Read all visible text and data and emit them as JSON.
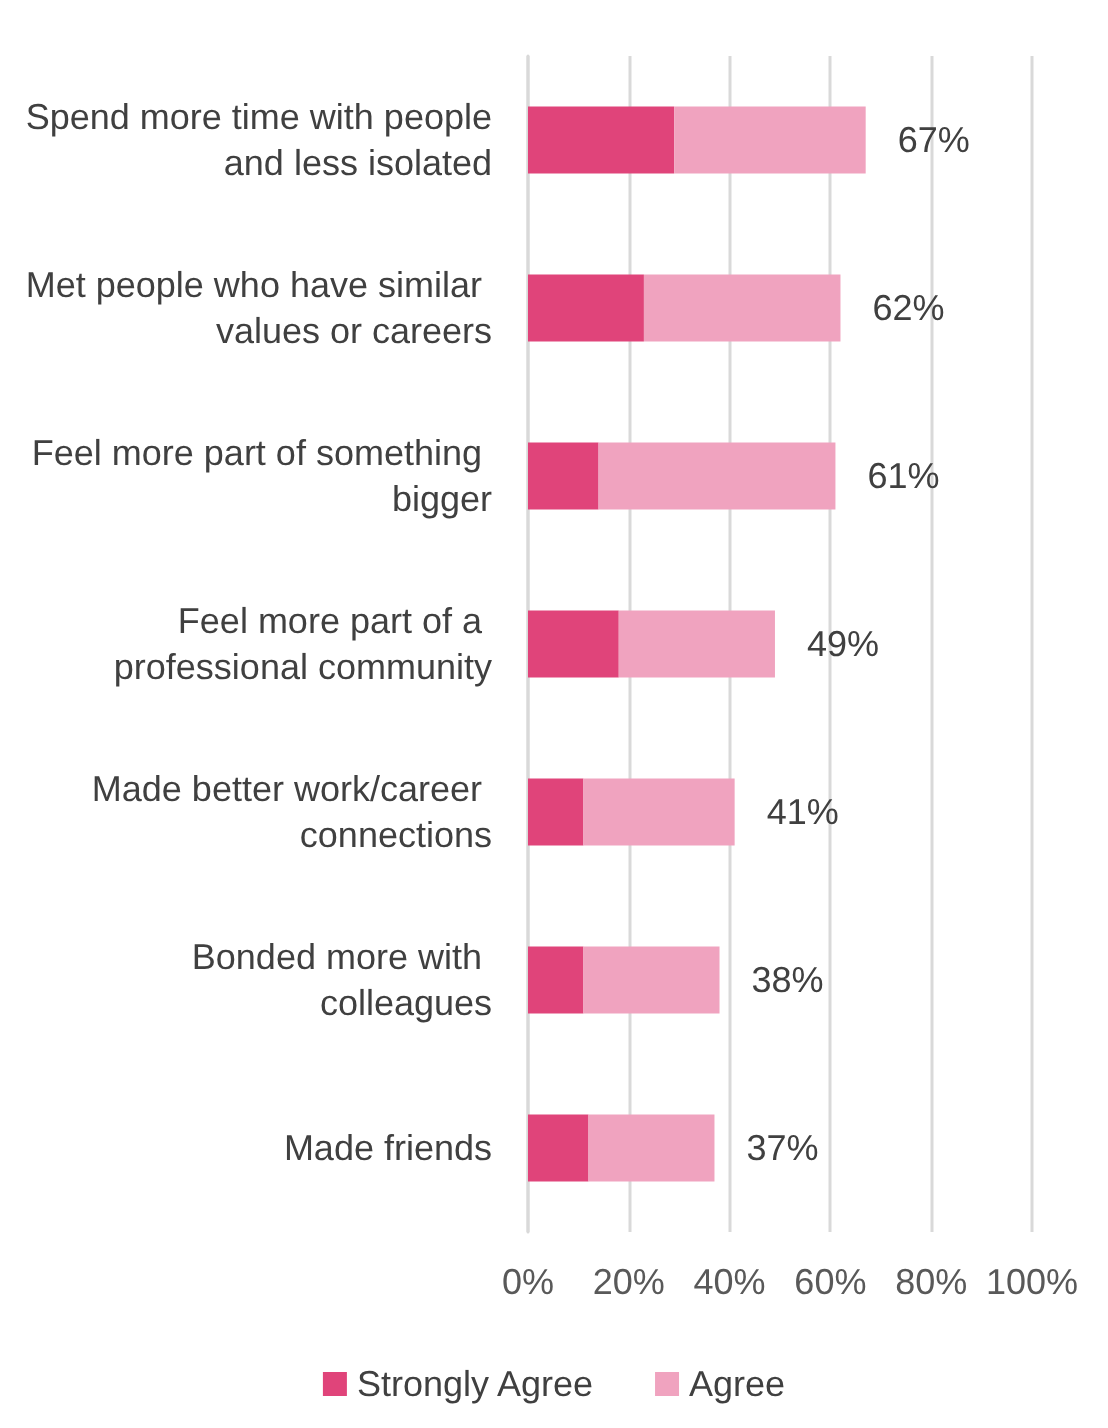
{
  "chart_data": {
    "type": "bar",
    "orientation": "horizontal",
    "stacked": true,
    "categories": [
      "Spend more time with people and less isolated",
      "Met people who have similar values or careers",
      "Feel more part of something bigger",
      "Feel more part of a professional community",
      "Made better work/career connections",
      "Bonded more with colleagues",
      "Made friends"
    ],
    "series": [
      {
        "name": "Strongly Agree",
        "color": "#e0447a",
        "values": [
          29,
          23,
          14,
          18,
          11,
          11,
          12
        ]
      },
      {
        "name": "Agree",
        "color": "#f0a3bf",
        "values": [
          38,
          39,
          47,
          31,
          30,
          27,
          25
        ]
      }
    ],
    "totals": [
      "67%",
      "62%",
      "61%",
      "49%",
      "41%",
      "38%",
      "37%"
    ],
    "xlim": [
      0,
      100
    ],
    "xticks": [
      {
        "value": 0,
        "label": "0%"
      },
      {
        "value": 20,
        "label": "20%"
      },
      {
        "value": 40,
        "label": "40%"
      },
      {
        "value": 60,
        "label": "60%"
      },
      {
        "value": 80,
        "label": "80%"
      },
      {
        "value": 100,
        "label": "100%"
      }
    ],
    "grid": "x",
    "legend": "bottom"
  }
}
